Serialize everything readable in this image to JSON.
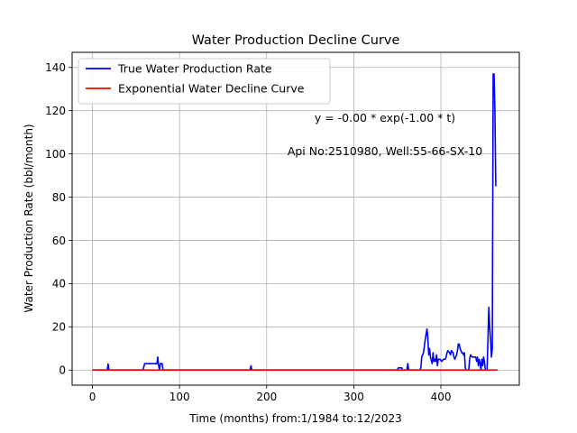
{
  "chart_data": {
    "type": "line",
    "title": "Water Production Decline Curve",
    "xlabel": "Time (months) from:1/1984 to:12/2023",
    "ylabel": "Water Production Rate (bbl/month)",
    "xlim": [
      -23.3,
      490
    ],
    "ylim": [
      -7,
      147
    ],
    "xticks": [
      0,
      100,
      200,
      300,
      400
    ],
    "yticks": [
      0,
      20,
      40,
      60,
      80,
      100,
      120,
      140
    ],
    "grid": true,
    "legend_position": "upper left",
    "annotations": [
      "y = -0.00 * exp(-1.00 * t)",
      "Api No:2510980, Well:55-66-SX-10"
    ],
    "series": [
      {
        "name": "True Water Production Rate",
        "color": "#0000ff",
        "points": [
          [
            0,
            0
          ],
          [
            17,
            0
          ],
          [
            18,
            2.8
          ],
          [
            19,
            0
          ],
          [
            58,
            0
          ],
          [
            60,
            3
          ],
          [
            72,
            3
          ],
          [
            74,
            2.8
          ],
          [
            75,
            6
          ],
          [
            76,
            2
          ],
          [
            77,
            0
          ],
          [
            78,
            3
          ],
          [
            80,
            3
          ],
          [
            81,
            0
          ],
          [
            181,
            0
          ],
          [
            182,
            2
          ],
          [
            183,
            0
          ],
          [
            350,
            0
          ],
          [
            351,
            1
          ],
          [
            355,
            1
          ],
          [
            356,
            0
          ],
          [
            361,
            0
          ],
          [
            362,
            3
          ],
          [
            363,
            0
          ],
          [
            376,
            0
          ],
          [
            377,
            1
          ],
          [
            378,
            6
          ],
          [
            380,
            8
          ],
          [
            382,
            14
          ],
          [
            384,
            19
          ],
          [
            385,
            15
          ],
          [
            386,
            7
          ],
          [
            387,
            10
          ],
          [
            388,
            6
          ],
          [
            390,
            3
          ],
          [
            391,
            8
          ],
          [
            392,
            4
          ],
          [
            393,
            5
          ],
          [
            394,
            4
          ],
          [
            395,
            7
          ],
          [
            396,
            2
          ],
          [
            397,
            5
          ],
          [
            399,
            5
          ],
          [
            401,
            4
          ],
          [
            403,
            5
          ],
          [
            405,
            5
          ],
          [
            406,
            6
          ],
          [
            407,
            8
          ],
          [
            408,
            9
          ],
          [
            410,
            8
          ],
          [
            411,
            7
          ],
          [
            412,
            9
          ],
          [
            414,
            8
          ],
          [
            415,
            6
          ],
          [
            416,
            5
          ],
          [
            418,
            7
          ],
          [
            419,
            9
          ],
          [
            420,
            12
          ],
          [
            421,
            12
          ],
          [
            422,
            10
          ],
          [
            423,
            9
          ],
          [
            424,
            8
          ],
          [
            425,
            8
          ],
          [
            426,
            7
          ],
          [
            427,
            8
          ],
          [
            428,
            1
          ],
          [
            429,
            0
          ],
          [
            432,
            0
          ],
          [
            433,
            5
          ],
          [
            434,
            7
          ],
          [
            436,
            6
          ],
          [
            438,
            6
          ],
          [
            440,
            6
          ],
          [
            441,
            4
          ],
          [
            442,
            6
          ],
          [
            443,
            2
          ],
          [
            444,
            5
          ],
          [
            445,
            3
          ],
          [
            446,
            0
          ],
          [
            447,
            5
          ],
          [
            448,
            2
          ],
          [
            449,
            6
          ],
          [
            450,
            4
          ],
          [
            451,
            0
          ],
          [
            453,
            0
          ],
          [
            454,
            14
          ],
          [
            455,
            29
          ],
          [
            456,
            20
          ],
          [
            457,
            14
          ],
          [
            458,
            6
          ],
          [
            459,
            10
          ],
          [
            460,
            137
          ],
          [
            461,
            137
          ],
          [
            462,
            120
          ],
          [
            463,
            85
          ]
        ]
      },
      {
        "name": "Exponential Water Decline Curve",
        "color": "#ff0000",
        "points": [
          [
            0,
            0
          ],
          [
            465,
            0
          ]
        ]
      }
    ]
  }
}
